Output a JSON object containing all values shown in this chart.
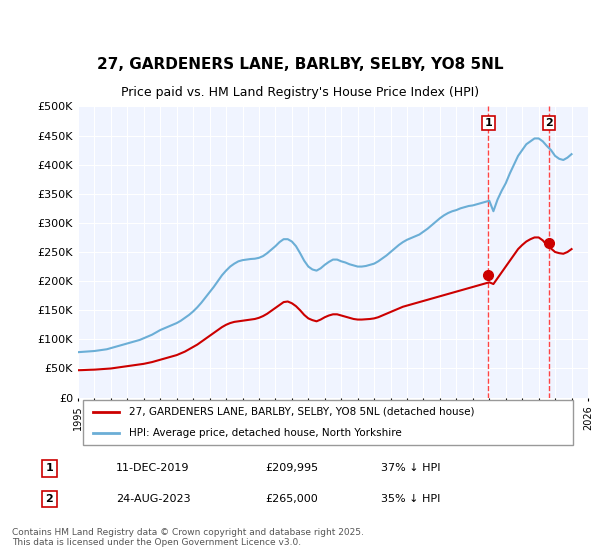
{
  "title": "27, GARDENERS LANE, BARLBY, SELBY, YO8 5NL",
  "subtitle": "Price paid vs. HM Land Registry's House Price Index (HPI)",
  "hpi_color": "#6baed6",
  "price_color": "#cc0000",
  "dashed_color": "#ff6666",
  "background_color": "#f0f4ff",
  "plot_bg": "#f0f4ff",
  "ylim": [
    0,
    500000
  ],
  "yticks": [
    0,
    50000,
    100000,
    150000,
    200000,
    250000,
    300000,
    350000,
    400000,
    450000,
    500000
  ],
  "ytick_labels": [
    "£0",
    "£50K",
    "£100K",
    "£150K",
    "£200K",
    "£250K",
    "£300K",
    "£350K",
    "£400K",
    "£450K",
    "£500K"
  ],
  "legend_label_price": "27, GARDENERS LANE, BARLBY, SELBY, YO8 5NL (detached house)",
  "legend_label_hpi": "HPI: Average price, detached house, North Yorkshire",
  "sale1_date": "11-DEC-2019",
  "sale1_price": "£209,995",
  "sale1_info": "37% ↓ HPI",
  "sale1_year": 2019.95,
  "sale1_value": 209995,
  "sale2_date": "24-AUG-2023",
  "sale2_price": "£265,000",
  "sale2_info": "35% ↓ HPI",
  "sale2_year": 2023.65,
  "sale2_value": 265000,
  "footer": "Contains HM Land Registry data © Crown copyright and database right 2025.\nThis data is licensed under the Open Government Licence v3.0.",
  "hpi_data_x": [
    1995,
    1995.25,
    1995.5,
    1995.75,
    1996,
    1996.25,
    1996.5,
    1996.75,
    1997,
    1997.25,
    1997.5,
    1997.75,
    1998,
    1998.25,
    1998.5,
    1998.75,
    1999,
    1999.25,
    1999.5,
    1999.75,
    2000,
    2000.25,
    2000.5,
    2000.75,
    2001,
    2001.25,
    2001.5,
    2001.75,
    2002,
    2002.25,
    2002.5,
    2002.75,
    2003,
    2003.25,
    2003.5,
    2003.75,
    2004,
    2004.25,
    2004.5,
    2004.75,
    2005,
    2005.25,
    2005.5,
    2005.75,
    2006,
    2006.25,
    2006.5,
    2006.75,
    2007,
    2007.25,
    2007.5,
    2007.75,
    2008,
    2008.25,
    2008.5,
    2008.75,
    2009,
    2009.25,
    2009.5,
    2009.75,
    2010,
    2010.25,
    2010.5,
    2010.75,
    2011,
    2011.25,
    2011.5,
    2011.75,
    2012,
    2012.25,
    2012.5,
    2012.75,
    2013,
    2013.25,
    2013.5,
    2013.75,
    2014,
    2014.25,
    2014.5,
    2014.75,
    2015,
    2015.25,
    2015.5,
    2015.75,
    2016,
    2016.25,
    2016.5,
    2016.75,
    2017,
    2017.25,
    2017.5,
    2017.75,
    2018,
    2018.25,
    2018.5,
    2018.75,
    2019,
    2019.25,
    2019.5,
    2019.75,
    2020,
    2020.25,
    2020.5,
    2020.75,
    2021,
    2021.25,
    2021.5,
    2021.75,
    2022,
    2022.25,
    2022.5,
    2022.75,
    2023,
    2023.25,
    2023.5,
    2023.75,
    2024,
    2024.25,
    2024.5,
    2024.75,
    2025
  ],
  "hpi_data_y": [
    78000,
    78500,
    79000,
    79500,
    80000,
    81000,
    82000,
    83000,
    85000,
    87000,
    89000,
    91000,
    93000,
    95000,
    97000,
    99000,
    102000,
    105000,
    108000,
    112000,
    116000,
    119000,
    122000,
    125000,
    128000,
    132000,
    137000,
    142000,
    148000,
    155000,
    163000,
    172000,
    181000,
    190000,
    200000,
    210000,
    218000,
    225000,
    230000,
    234000,
    236000,
    237000,
    238000,
    238500,
    240000,
    243000,
    248000,
    254000,
    260000,
    267000,
    272000,
    272000,
    268000,
    260000,
    248000,
    235000,
    225000,
    220000,
    218000,
    222000,
    228000,
    233000,
    237000,
    237000,
    234000,
    232000,
    229000,
    227000,
    225000,
    225000,
    226000,
    228000,
    230000,
    234000,
    239000,
    244000,
    250000,
    256000,
    262000,
    267000,
    271000,
    274000,
    277000,
    280000,
    285000,
    290000,
    296000,
    302000,
    308000,
    313000,
    317000,
    320000,
    322000,
    325000,
    327000,
    329000,
    330000,
    332000,
    334000,
    336000,
    338000,
    320000,
    340000,
    355000,
    368000,
    385000,
    400000,
    415000,
    425000,
    435000,
    440000,
    445000,
    445000,
    440000,
    432000,
    425000,
    415000,
    410000,
    408000,
    412000,
    418000
  ],
  "price_data_x": [
    1995,
    1995.25,
    1995.5,
    1995.75,
    1996,
    1996.25,
    1996.5,
    1996.75,
    1997,
    1997.25,
    1997.5,
    1997.75,
    1998,
    1998.25,
    1998.5,
    1998.75,
    1999,
    1999.25,
    1999.5,
    1999.75,
    2000,
    2000.25,
    2000.5,
    2000.75,
    2001,
    2001.25,
    2001.5,
    2001.75,
    2002,
    2002.25,
    2002.5,
    2002.75,
    2003,
    2003.25,
    2003.5,
    2003.75,
    2004,
    2004.25,
    2004.5,
    2004.75,
    2005,
    2005.25,
    2005.5,
    2005.75,
    2006,
    2006.25,
    2006.5,
    2006.75,
    2007,
    2007.25,
    2007.5,
    2007.75,
    2008,
    2008.25,
    2008.5,
    2008.75,
    2009,
    2009.25,
    2009.5,
    2009.75,
    2010,
    2010.25,
    2010.5,
    2010.75,
    2011,
    2011.25,
    2011.5,
    2011.75,
    2012,
    2012.25,
    2012.5,
    2012.75,
    2013,
    2013.25,
    2013.5,
    2013.75,
    2014,
    2014.25,
    2014.5,
    2014.75,
    2015,
    2015.25,
    2015.5,
    2015.75,
    2016,
    2016.25,
    2016.5,
    2016.75,
    2017,
    2017.25,
    2017.5,
    2017.75,
    2018,
    2018.25,
    2018.5,
    2018.75,
    2019,
    2019.25,
    2019.5,
    2019.75,
    2020,
    2020.25,
    2020.5,
    2020.75,
    2021,
    2021.25,
    2021.5,
    2021.75,
    2022,
    2022.25,
    2022.5,
    2022.75,
    2023,
    2023.25,
    2023.5,
    2023.75,
    2024,
    2024.25,
    2024.5,
    2024.75,
    2025
  ],
  "price_data_y": [
    47000,
    47200,
    47500,
    47800,
    48000,
    48500,
    49000,
    49500,
    50000,
    51000,
    52000,
    53000,
    54000,
    55000,
    56000,
    57000,
    58000,
    59500,
    61000,
    63000,
    65000,
    67000,
    69000,
    71000,
    73000,
    76000,
    79000,
    83000,
    87000,
    91000,
    96000,
    101000,
    106000,
    111000,
    116000,
    121000,
    125000,
    128000,
    130000,
    131000,
    132000,
    133000,
    134000,
    135000,
    137000,
    140000,
    144000,
    149000,
    154000,
    159000,
    164000,
    165000,
    162000,
    157000,
    150000,
    142000,
    136000,
    133000,
    131000,
    134000,
    138000,
    141000,
    143000,
    143000,
    141000,
    139000,
    137000,
    135000,
    134000,
    134000,
    134500,
    135000,
    136000,
    138000,
    141000,
    144000,
    147000,
    150000,
    153000,
    156000,
    158000,
    160000,
    162000,
    164000,
    166000,
    168000,
    170000,
    172000,
    174000,
    176000,
    178000,
    180000,
    182000,
    184000,
    186000,
    188000,
    190000,
    192000,
    194000,
    196000,
    198000,
    195000,
    205000,
    215000,
    225000,
    235000,
    245000,
    255000,
    262000,
    268000,
    272000,
    275000,
    275000,
    270000,
    262000,
    256000,
    250000,
    248000,
    247000,
    250000,
    255000
  ]
}
